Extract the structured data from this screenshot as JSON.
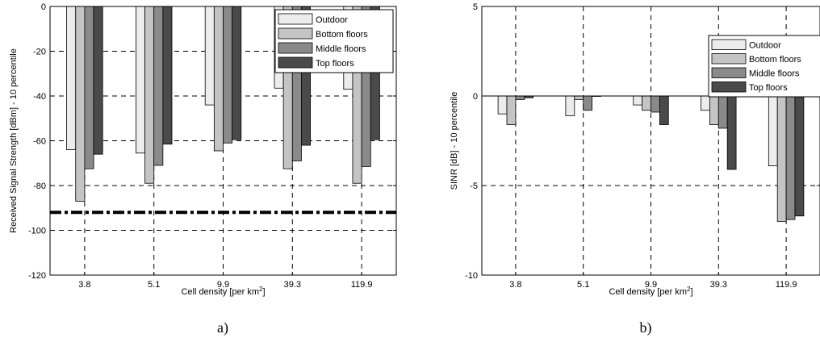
{
  "chart_data": [
    {
      "type": "bar",
      "panel_label": "a)",
      "categories": [
        "3.8",
        "5.1",
        "9.9",
        "39.3",
        "119.9"
      ],
      "series": [
        {
          "name": "Outdoor",
          "color": "#ececec",
          "values": [
            -64,
            -65.5,
            -44,
            -36.5,
            -37
          ]
        },
        {
          "name": "Bottom floors",
          "color": "#c4c4c4",
          "values": [
            -87,
            -79,
            -64.5,
            -72.5,
            -79
          ]
        },
        {
          "name": "Middle floors",
          "color": "#8a8a8a",
          "values": [
            -72.5,
            -71,
            -61,
            -69,
            -71.5
          ]
        },
        {
          "name": "Top floors",
          "color": "#4a4a4a",
          "values": [
            -66,
            -61.5,
            -59.5,
            -62,
            -59.5
          ]
        }
      ],
      "reference_line": -92,
      "xlabel": "Cell density [per km",
      "xlabel_sup": "2",
      "xlabel_end": "]",
      "ylabel": "Received Signal Strength [dBm] - 10 percentile",
      "ylim": [
        -120,
        0
      ],
      "yticks": [
        0,
        -20,
        -40,
        -60,
        -80,
        -100,
        -120
      ],
      "grid": true,
      "legend_position": "top-right"
    },
    {
      "type": "bar",
      "panel_label": "b)",
      "categories": [
        "3.8",
        "5.1",
        "9.9",
        "39.3",
        "119.9"
      ],
      "series": [
        {
          "name": "Outdoor",
          "color": "#ececec",
          "values": [
            -1.0,
            -1.1,
            -0.5,
            -0.8,
            -3.9
          ]
        },
        {
          "name": "Bottom floors",
          "color": "#c4c4c4",
          "values": [
            -1.6,
            -0.2,
            -0.8,
            -1.6,
            -7.0
          ]
        },
        {
          "name": "Middle floors",
          "color": "#8a8a8a",
          "values": [
            -0.2,
            -0.8,
            -0.9,
            -1.8,
            -6.9
          ]
        },
        {
          "name": "Top floors",
          "color": "#4a4a4a",
          "values": [
            -0.1,
            0,
            -1.6,
            -4.1,
            -6.7
          ]
        }
      ],
      "xlabel": "Cell density [per km",
      "xlabel_sup": "2",
      "xlabel_end": "]",
      "ylabel": "SINR [dB] - 10 percentile",
      "ylim": [
        -10,
        5
      ],
      "yticks": [
        5,
        0,
        -5,
        -10
      ],
      "grid": true,
      "legend_position": "top-right"
    }
  ]
}
